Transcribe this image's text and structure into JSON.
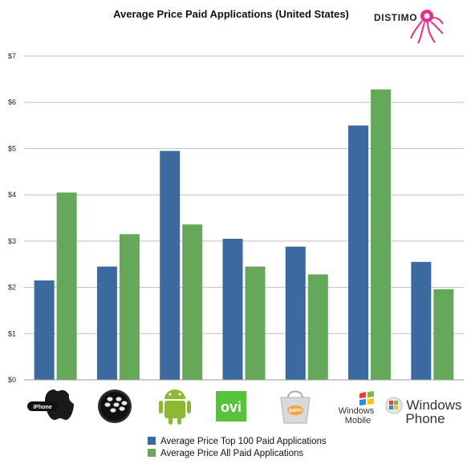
{
  "chart_data": {
    "type": "bar",
    "title": "Average Price Paid Applications (United States)",
    "categories": [
      "iPhone",
      "BlackBerry",
      "Android",
      "Ovi",
      "Palm",
      "Windows Mobile",
      "Windows Phone"
    ],
    "series": [
      {
        "name": "Average Price Top 100 Paid Applications",
        "color": "#3a6aa0",
        "values": [
          2.15,
          2.45,
          4.95,
          3.05,
          2.88,
          5.5,
          2.55
        ]
      },
      {
        "name": "Average Price All Paid Applications",
        "color": "#66a85a",
        "values": [
          4.05,
          3.15,
          3.36,
          2.45,
          2.28,
          6.28,
          1.96
        ]
      }
    ],
    "yticks": [
      "$0",
      "$1",
      "$2",
      "$3",
      "$4",
      "$5",
      "$6",
      "$7"
    ],
    "ylim": [
      0,
      7
    ],
    "grid": true,
    "legend_position": "bottom"
  },
  "brand": {
    "name": "DISTIMO"
  },
  "logos": {
    "iphone": "iPhone",
    "ovi": "ovi",
    "palm": "palm",
    "windows_mobile": [
      "Windows",
      "Mobile"
    ],
    "windows_phone": [
      "Windows",
      "Phone"
    ]
  }
}
